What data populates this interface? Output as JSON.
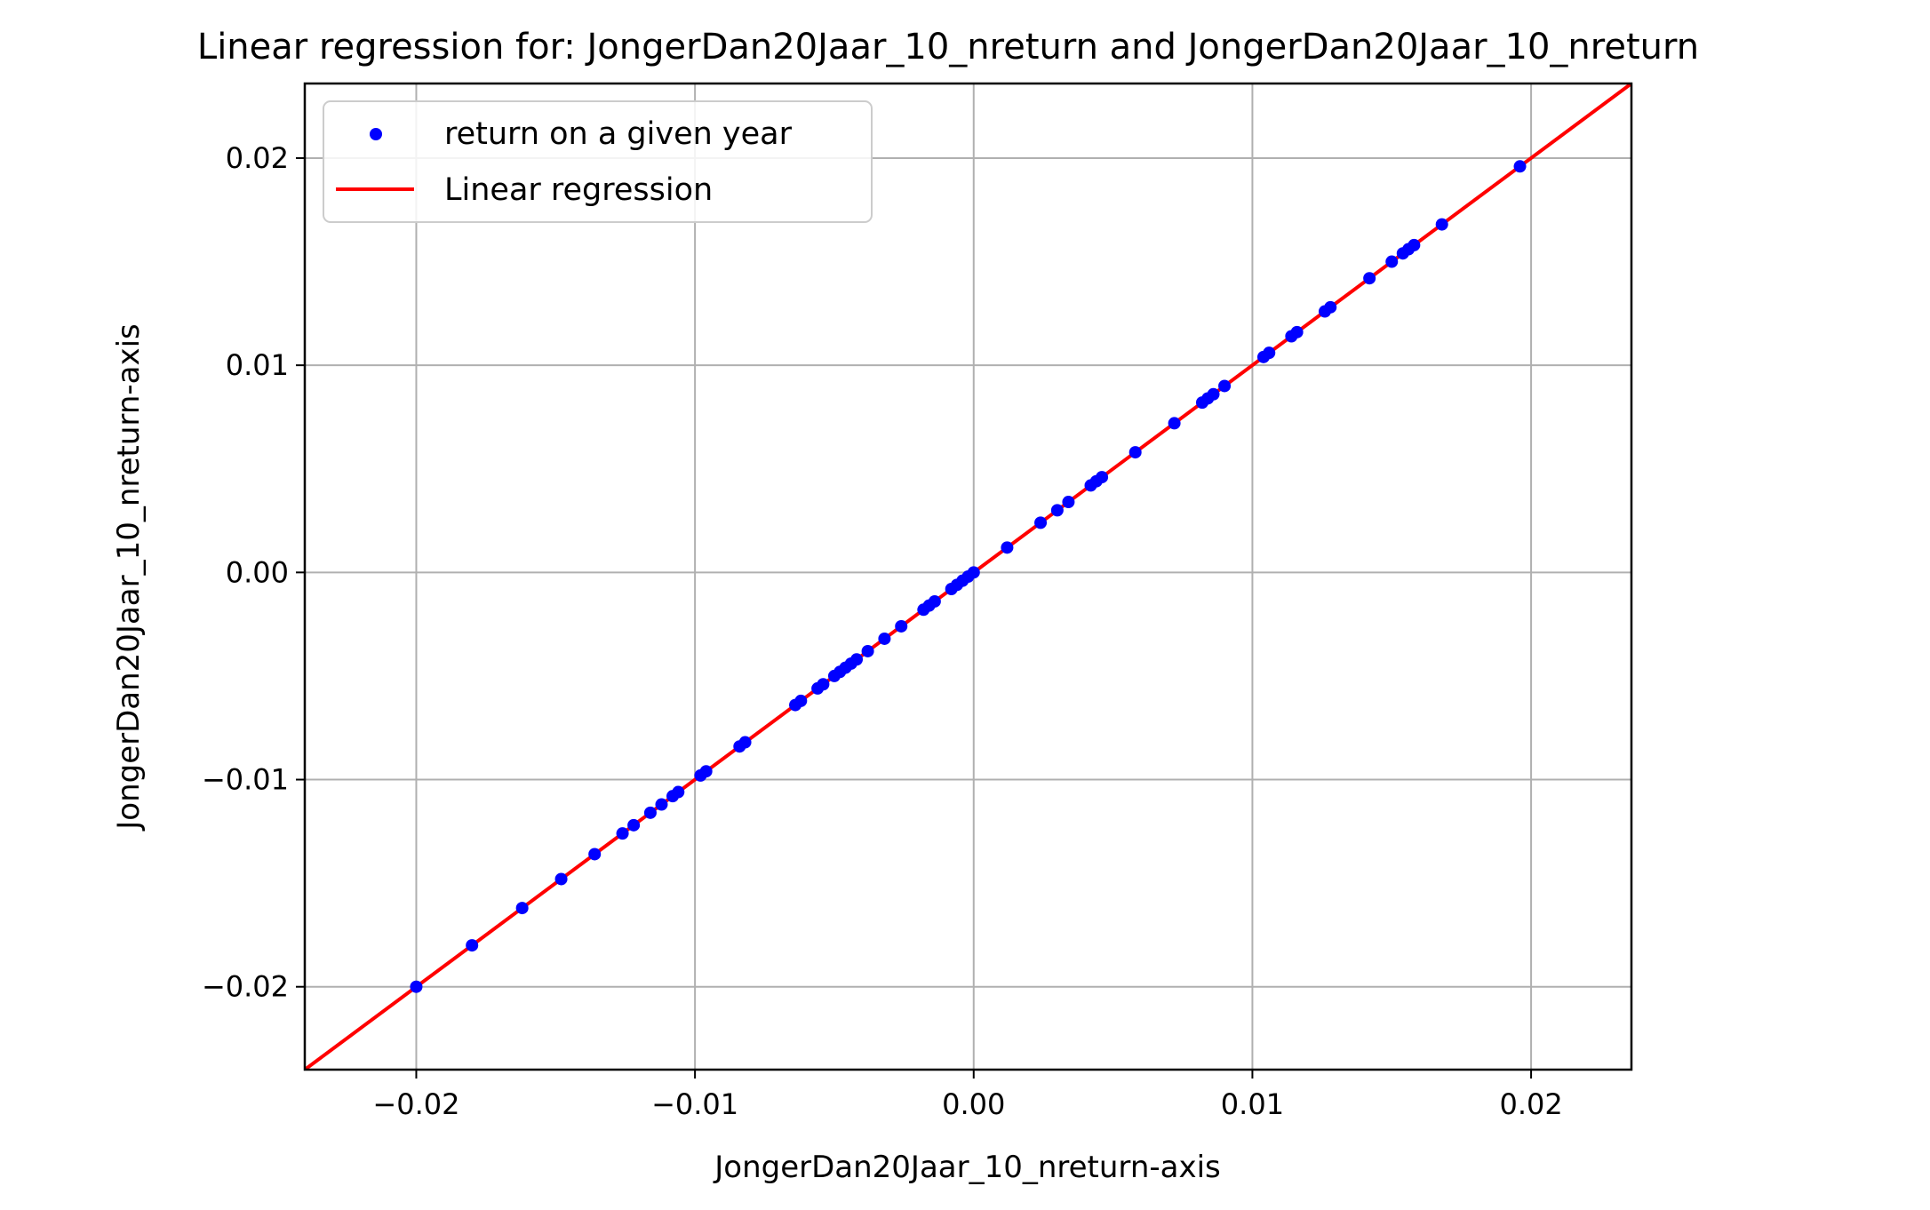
{
  "chart_data": {
    "type": "scatter",
    "title": "Linear regression for: JongerDan20Jaar_10_nreturn and JongerDan20Jaar_10_nreturn",
    "xlabel": "JongerDan20Jaar_10_nreturn-axis",
    "ylabel": "JongerDan20Jaar_10_nreturn-axis",
    "xlim": [
      -0.024,
      0.0236
    ],
    "ylim": [
      -0.024,
      0.0236
    ],
    "xticks": [
      -0.02,
      -0.01,
      0.0,
      0.01,
      0.02
    ],
    "yticks": [
      -0.02,
      -0.01,
      0.0,
      0.01,
      0.02
    ],
    "xtick_labels": [
      "−0.02",
      "−0.01",
      "0.00",
      "0.01",
      "0.02"
    ],
    "ytick_labels": [
      "−0.02",
      "−0.01",
      "0.00",
      "0.01",
      "0.02"
    ],
    "grid": true,
    "legend": {
      "position": "top-left",
      "entries": [
        "return on a given year",
        "Linear regression"
      ]
    },
    "colors": {
      "scatter": "#0000ff",
      "regression": "#ff0000"
    },
    "series": [
      {
        "name": "return on a given year",
        "kind": "scatter",
        "x": [
          -0.02,
          -0.018,
          -0.0162,
          -0.0148,
          -0.0136,
          -0.0126,
          -0.0122,
          -0.0116,
          -0.0112,
          -0.0108,
          -0.0106,
          -0.0098,
          -0.0096,
          -0.0084,
          -0.0082,
          -0.0064,
          -0.0062,
          -0.0056,
          -0.0054,
          -0.005,
          -0.0048,
          -0.0046,
          -0.0044,
          -0.0042,
          -0.0038,
          -0.0032,
          -0.0026,
          -0.0018,
          -0.0016,
          -0.0014,
          -0.0008,
          -0.0006,
          -0.0004,
          -0.0002,
          0.0,
          0.0012,
          0.0024,
          0.003,
          0.0034,
          0.0042,
          0.0044,
          0.0046,
          0.0058,
          0.0072,
          0.0082,
          0.0084,
          0.0086,
          0.009,
          0.0104,
          0.0106,
          0.0114,
          0.0116,
          0.0126,
          0.0128,
          0.0142,
          0.015,
          0.0154,
          0.0156,
          0.0158,
          0.0168,
          0.0196
        ],
        "y": [
          -0.02,
          -0.018,
          -0.0162,
          -0.0148,
          -0.0136,
          -0.0126,
          -0.0122,
          -0.0116,
          -0.0112,
          -0.0108,
          -0.0106,
          -0.0098,
          -0.0096,
          -0.0084,
          -0.0082,
          -0.0064,
          -0.0062,
          -0.0056,
          -0.0054,
          -0.005,
          -0.0048,
          -0.0046,
          -0.0044,
          -0.0042,
          -0.0038,
          -0.0032,
          -0.0026,
          -0.0018,
          -0.0016,
          -0.0014,
          -0.0008,
          -0.0006,
          -0.0004,
          -0.0002,
          0.0,
          0.0012,
          0.0024,
          0.003,
          0.0034,
          0.0042,
          0.0044,
          0.0046,
          0.0058,
          0.0072,
          0.0082,
          0.0084,
          0.0086,
          0.009,
          0.0104,
          0.0106,
          0.0114,
          0.0116,
          0.0126,
          0.0128,
          0.0142,
          0.015,
          0.0154,
          0.0156,
          0.0158,
          0.0168,
          0.0196
        ]
      },
      {
        "name": "Linear regression",
        "kind": "line",
        "slope": 1.0,
        "intercept": 0.0
      }
    ]
  }
}
